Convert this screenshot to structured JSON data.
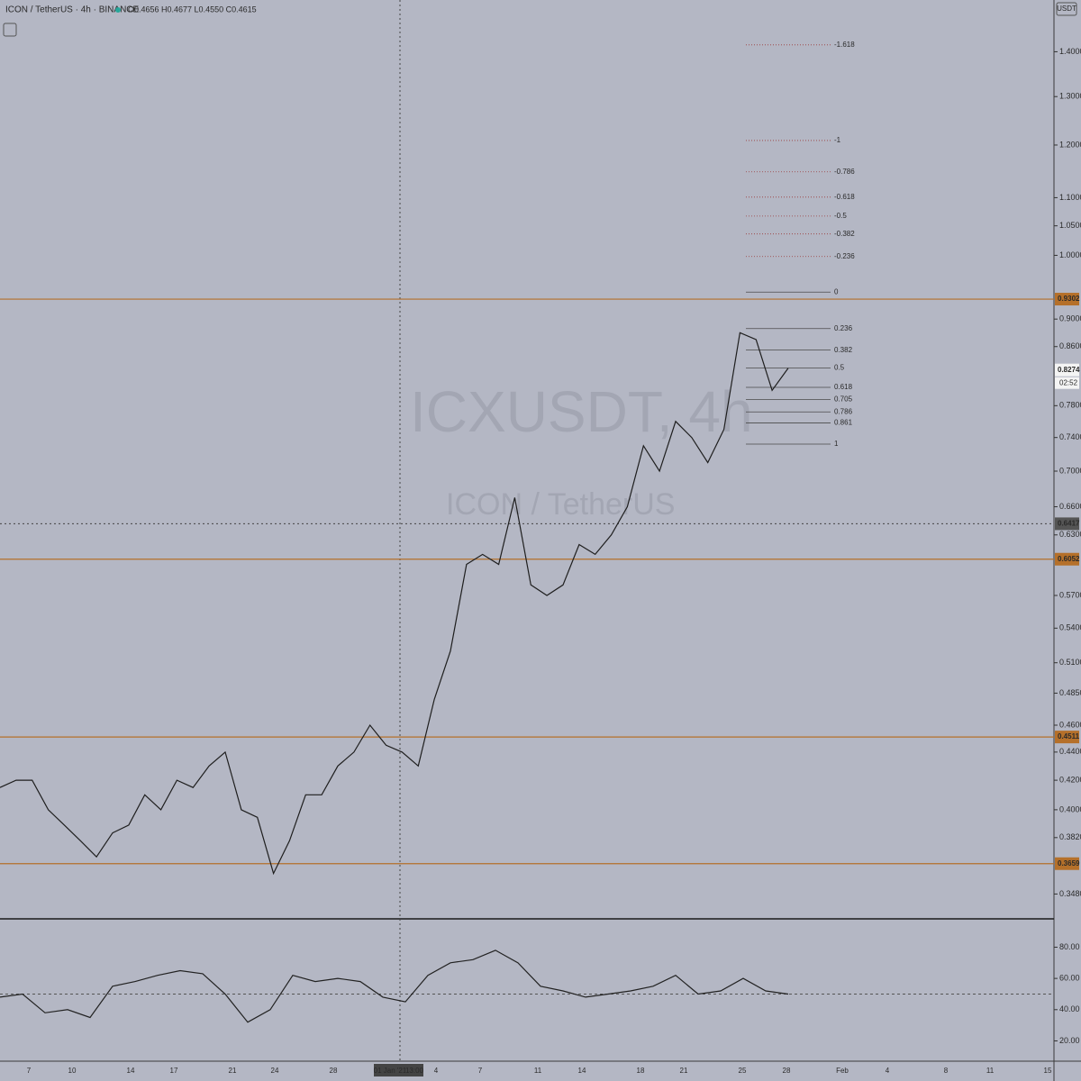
{
  "header": {
    "symbol": "ICON / TetherUS · 4h · BINANCE",
    "ohlc": "O0.4656 H0.4677 L0.4550 C0.4615",
    "currency": "USDT"
  },
  "watermark": {
    "ticker": "ICXUSDT, 4h",
    "name": "ICON / TetherUS"
  },
  "time_axis": {
    "labels": [
      "7",
      "10",
      "14",
      "17",
      "21",
      "24",
      "28",
      "01 Jan '21",
      "13:00",
      "4",
      "7",
      "11",
      "14",
      "18",
      "21",
      "25",
      "28",
      "Feb",
      "4",
      "8",
      "11",
      "15"
    ]
  },
  "chart_data": [
    {
      "type": "line",
      "log_scale": true,
      "color": "#1e1e1e",
      "values": [
        0.415,
        0.42,
        0.42,
        0.4,
        0.39,
        0.38,
        0.37,
        0.385,
        0.39,
        0.41,
        0.4,
        0.42,
        0.415,
        0.43,
        0.44,
        0.4,
        0.395,
        0.36,
        0.38,
        0.41,
        0.41,
        0.43,
        0.44,
        0.46,
        0.445,
        0.44,
        0.43,
        0.48,
        0.52,
        0.6,
        0.61,
        0.6,
        0.67,
        0.58,
        0.57,
        0.58,
        0.62,
        0.61,
        0.63,
        0.66,
        0.73,
        0.7,
        0.76,
        0.74,
        0.71,
        0.75,
        0.88,
        0.87,
        0.8,
        0.83
      ],
      "ylim": [
        0.334,
        1.525
      ],
      "yticks": [
        {
          "value": 1.4,
          "label": "1.4000"
        },
        {
          "value": 1.3,
          "label": "1.3000"
        },
        {
          "value": 1.2,
          "label": "1.2000"
        },
        {
          "value": 1.1,
          "label": "1.1000"
        },
        {
          "value": 1.05,
          "label": "1.0500"
        },
        {
          "value": 1.0,
          "label": "1.0000"
        },
        {
          "value": 0.9,
          "label": "0.9000"
        },
        {
          "value": 0.86,
          "label": "0.8600"
        },
        {
          "value": 0.78,
          "label": "0.7800"
        },
        {
          "value": 0.74,
          "label": "0.7400"
        },
        {
          "value": 0.7,
          "label": "0.7000"
        },
        {
          "value": 0.66,
          "label": "0.6600"
        },
        {
          "value": 0.63,
          "label": "0.6300"
        },
        {
          "value": 0.57,
          "label": "0.5700"
        },
        {
          "value": 0.54,
          "label": "0.5400"
        },
        {
          "value": 0.51,
          "label": "0.5100"
        },
        {
          "value": 0.485,
          "label": "0.4850"
        },
        {
          "value": 0.46,
          "label": "0.4600"
        },
        {
          "value": 0.44,
          "label": "0.4400"
        },
        {
          "value": 0.42,
          "label": "0.4200"
        },
        {
          "value": 0.4,
          "label": "0.4000"
        },
        {
          "value": 0.382,
          "label": "0.3820"
        },
        {
          "value": 0.348,
          "label": "0.3480"
        }
      ],
      "levels": [
        0.9302,
        0.6052,
        0.4511,
        0.3659
      ],
      "level_color": "#b5702a",
      "last_price": 0.8274,
      "countdown": "02:52",
      "crosshair_price": 0.6417,
      "fib_color": "#4a4a4a",
      "fib_ext_color": "#9a3b3b",
      "fib": [
        {
          "ratio": 0,
          "price": 0.941
        },
        {
          "ratio": 0.236,
          "price": 0.886
        },
        {
          "ratio": 0.382,
          "price": 0.855
        },
        {
          "ratio": 0.5,
          "price": 0.83
        },
        {
          "ratio": 0.618,
          "price": 0.804
        },
        {
          "ratio": 0.705,
          "price": 0.788
        },
        {
          "ratio": 0.786,
          "price": 0.772
        },
        {
          "ratio": 0.861,
          "price": 0.758
        },
        {
          "ratio": 1,
          "price": 0.732
        },
        {
          "ratio": -0.236,
          "price": 0.998
        },
        {
          "ratio": -0.382,
          "price": 1.036
        },
        {
          "ratio": -0.5,
          "price": 1.067
        },
        {
          "ratio": -0.618,
          "price": 1.101
        },
        {
          "ratio": -0.786,
          "price": 1.148
        },
        {
          "ratio": -1,
          "price": 1.209
        },
        {
          "ratio": -1.618,
          "price": 1.416
        }
      ]
    },
    {
      "type": "line",
      "color": "#222222",
      "midline": 50,
      "values": [
        48,
        50,
        38,
        40,
        35,
        55,
        58,
        62,
        65,
        63,
        50,
        32,
        40,
        62,
        58,
        60,
        58,
        48,
        45,
        62,
        70,
        72,
        78,
        70,
        55,
        52,
        48,
        50,
        52,
        55,
        62,
        50,
        52,
        60,
        52,
        50
      ],
      "ylim": [
        7,
        97
      ],
      "yticks": [
        {
          "value": 80,
          "label": "80.00"
        },
        {
          "value": 60,
          "label": "60.00"
        },
        {
          "value": 40,
          "label": "40.00"
        },
        {
          "value": 20,
          "label": "20.00"
        }
      ]
    }
  ]
}
